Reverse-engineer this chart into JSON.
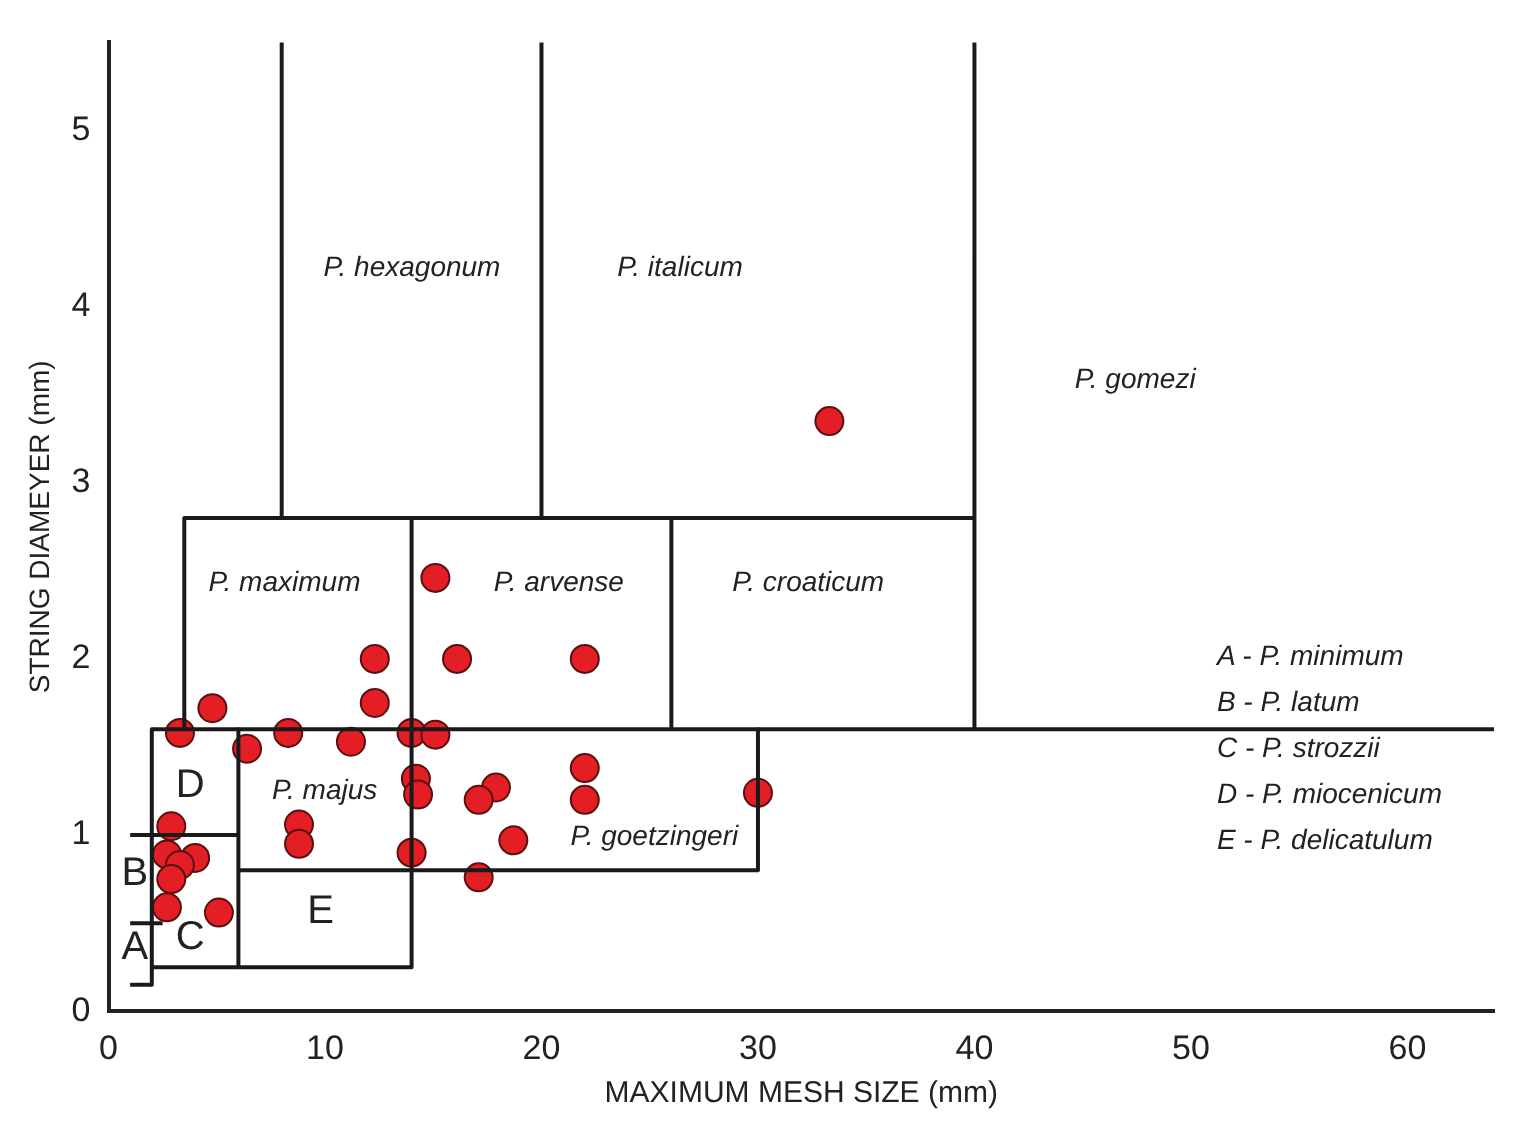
{
  "chart_data": {
    "type": "scatter",
    "xlabel": "MAXIMUM MESH SIZE (mm)",
    "ylabel": "STRING DIAMEYER (mm)",
    "xlim": [
      0,
      64
    ],
    "ylim": [
      0,
      5.5
    ],
    "xticks": [
      0,
      10,
      20,
      30,
      40,
      50,
      60
    ],
    "yticks": [
      0,
      1,
      2,
      3,
      4,
      5
    ],
    "grid": false,
    "legend": false,
    "series": [
      {
        "type": "line",
        "color": "#1a1a1a",
        "marker": "none",
        "line_style": "solid",
        "x": [
          8,
          8
        ],
        "values": [
          5.5,
          2.8
        ]
      },
      {
        "type": "line",
        "color": "#1a1a1a",
        "marker": "none",
        "line_style": "solid",
        "x": [
          20,
          20
        ],
        "values": [
          5.5,
          2.8
        ]
      },
      {
        "type": "line",
        "color": "#1a1a1a",
        "marker": "none",
        "line_style": "solid",
        "x": [
          40,
          40
        ],
        "values": [
          5.5,
          1.6
        ]
      },
      {
        "type": "line",
        "color": "#1a1a1a",
        "marker": "none",
        "line_style": "solid",
        "x": [
          3.5,
          40
        ],
        "values": [
          2.8,
          2.8
        ]
      },
      {
        "type": "line",
        "color": "#1a1a1a",
        "marker": "none",
        "line_style": "solid",
        "x": [
          3.5,
          3.5
        ],
        "values": [
          2.8,
          1.6
        ]
      },
      {
        "type": "line",
        "color": "#1a1a1a",
        "marker": "none",
        "line_style": "solid",
        "x": [
          14,
          14
        ],
        "values": [
          2.8,
          0.25
        ]
      },
      {
        "type": "line",
        "color": "#1a1a1a",
        "marker": "none",
        "line_style": "solid",
        "x": [
          26,
          26
        ],
        "values": [
          2.8,
          1.6
        ]
      },
      {
        "type": "line",
        "color": "#1a1a1a",
        "marker": "none",
        "line_style": "solid",
        "x": [
          2,
          64
        ],
        "values": [
          1.6,
          1.6
        ]
      },
      {
        "type": "line",
        "color": "#1a1a1a",
        "marker": "none",
        "line_style": "solid",
        "x": [
          2,
          2
        ],
        "values": [
          1.6,
          0.15
        ]
      },
      {
        "type": "line",
        "color": "#1a1a1a",
        "marker": "none",
        "line_style": "solid",
        "x": [
          30,
          30
        ],
        "values": [
          1.6,
          0.8
        ]
      },
      {
        "type": "line",
        "color": "#1a1a1a",
        "marker": "none",
        "line_style": "solid",
        "x": [
          6,
          30
        ],
        "values": [
          0.8,
          0.8
        ]
      },
      {
        "type": "line",
        "color": "#1a1a1a",
        "marker": "none",
        "line_style": "solid",
        "x": [
          6,
          6
        ],
        "values": [
          1.6,
          0.25
        ]
      },
      {
        "type": "line",
        "color": "#1a1a1a",
        "marker": "none",
        "line_style": "solid",
        "x": [
          2,
          14
        ],
        "values": [
          0.25,
          0.25
        ]
      },
      {
        "type": "line",
        "color": "#1a1a1a",
        "marker": "none",
        "line_style": "solid",
        "x": [
          1,
          6
        ],
        "values": [
          1,
          1
        ]
      },
      {
        "type": "line",
        "color": "#1a1a1a",
        "marker": "none",
        "line_style": "solid",
        "x": [
          1,
          2.5
        ],
        "values": [
          0.5,
          0.5
        ]
      },
      {
        "type": "line",
        "color": "#1a1a1a",
        "marker": "none",
        "line_style": "solid",
        "x": [
          1,
          2
        ],
        "values": [
          0.15,
          0.15
        ]
      },
      {
        "type": "scatter",
        "color": "#e31e24",
        "marker": "circle",
        "x": [
          15.1,
          12.3,
          16.1,
          22,
          4.8,
          12.3,
          3.3,
          6.4,
          8.3,
          11.2,
          14,
          15.1,
          22,
          14.2,
          14.3,
          17.9,
          17.1,
          22,
          30,
          8.8,
          8.8,
          18.7,
          14,
          17.1,
          2.9,
          2.7,
          4,
          3.3,
          2.9,
          2.7,
          5.1,
          33.3
        ],
        "values": [
          2.46,
          2,
          2,
          2,
          1.72,
          1.75,
          1.58,
          1.49,
          1.58,
          1.53,
          1.58,
          1.57,
          1.38,
          1.32,
          1.23,
          1.27,
          1.2,
          1.2,
          1.24,
          1.06,
          0.95,
          0.97,
          0.9,
          0.76,
          1.05,
          0.89,
          0.87,
          0.83,
          0.75,
          0.59,
          0.56,
          3.35
        ]
      }
    ],
    "annotations": [
      "P. hexagonum",
      "P. italicum",
      "P. gomezi",
      "P. maximum",
      "P. arvense",
      "P. croaticum",
      "P. majus",
      "P. goetzingeri",
      "D",
      "B",
      "C",
      "A",
      "E",
      "A - P. minimum",
      "B - P. latum",
      "C - P. strozzii",
      "D - P. miocenicum",
      "E - P. delicatulum"
    ]
  }
}
